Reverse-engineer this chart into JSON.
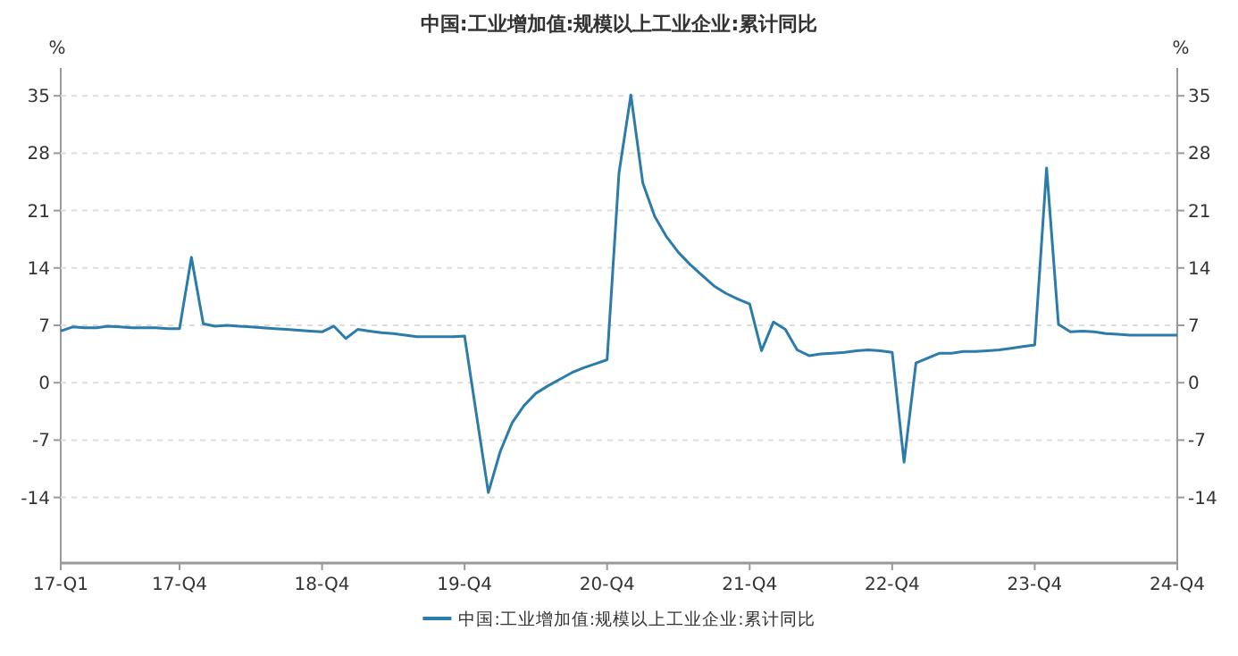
{
  "chart_data": {
    "type": "line",
    "title": "中国:工业增加值:规模以上工业企业:累计同比",
    "ylabel": "%",
    "y2label": "%",
    "categories": [
      "17-Q1",
      null,
      null,
      null,
      null,
      null,
      null,
      null,
      null,
      null,
      "17-Q4",
      null,
      null,
      null,
      null,
      null,
      null,
      null,
      null,
      null,
      null,
      null,
      "18-Q4",
      null,
      null,
      null,
      null,
      null,
      null,
      null,
      null,
      null,
      null,
      null,
      "19-Q4",
      null,
      null,
      null,
      null,
      null,
      null,
      null,
      null,
      null,
      null,
      null,
      "20-Q4",
      null,
      null,
      null,
      null,
      null,
      null,
      null,
      null,
      null,
      null,
      null,
      "21-Q4",
      null,
      null,
      null,
      null,
      null,
      null,
      null,
      null,
      null,
      null,
      null,
      "22-Q4",
      null,
      null,
      null,
      null,
      null,
      null,
      null,
      null,
      null,
      null,
      null,
      "23-Q4",
      null,
      null,
      null,
      null,
      null,
      null,
      null,
      null,
      null,
      null,
      null,
      "24-Q4"
    ],
    "series": [
      {
        "name": "中国:工业增加值:规模以上工业企业:累计同比",
        "color": "#2b7bab",
        "values": [
          6.3,
          6.8,
          6.7,
          6.7,
          6.9,
          6.8,
          6.7,
          6.7,
          6.7,
          6.6,
          6.6,
          15.3,
          7.2,
          6.9,
          7.0,
          6.9,
          6.8,
          6.7,
          6.6,
          6.5,
          6.4,
          6.3,
          6.2,
          6.9,
          5.4,
          6.5,
          6.3,
          6.1,
          6.0,
          5.8,
          5.6,
          5.6,
          5.6,
          5.6,
          5.7,
          -3.9,
          -13.4,
          -8.4,
          -4.9,
          -2.8,
          -1.3,
          -0.4,
          0.4,
          1.2,
          1.8,
          2.3,
          2.8,
          25.6,
          35.1,
          24.4,
          20.3,
          17.8,
          15.9,
          14.4,
          13.1,
          11.8,
          10.9,
          10.2,
          9.6,
          3.9,
          7.4,
          6.5,
          4.0,
          3.3,
          3.5,
          3.6,
          3.7,
          3.9,
          4.0,
          3.9,
          3.7,
          -9.7,
          2.4,
          3.0,
          3.6,
          3.6,
          3.8,
          3.8,
          3.9,
          4.0,
          4.2,
          4.4,
          4.6,
          26.2,
          7.1,
          6.2,
          6.3,
          6.2,
          6.0,
          5.9,
          5.8,
          5.8,
          5.8,
          5.8,
          5.8
        ]
      }
    ],
    "ylim": [
      -22,
      38.4
    ],
    "yticks": [
      -14,
      -7,
      0,
      7,
      14,
      21,
      28,
      35
    ],
    "y2lim": [
      -22,
      38.4
    ],
    "y2ticks": [
      -14,
      -7,
      0,
      7,
      14,
      21,
      28,
      35
    ],
    "grid": "y",
    "legend": "bottom",
    "line_style": "solid",
    "marker": "none"
  }
}
